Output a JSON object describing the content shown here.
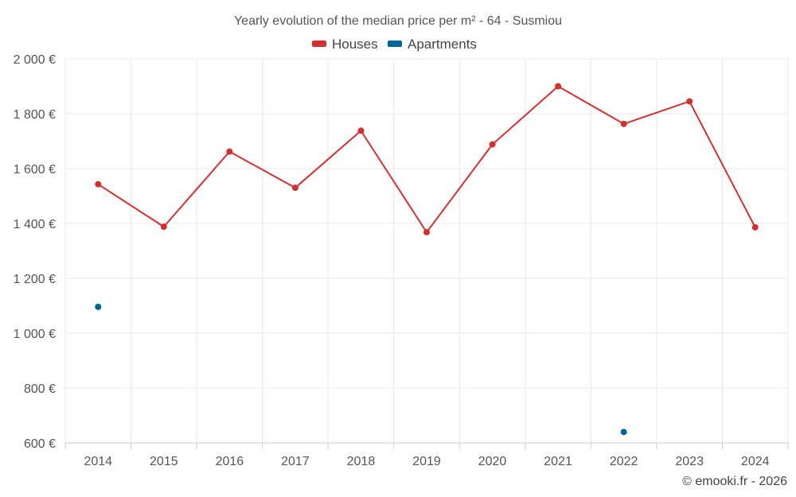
{
  "chart_data": {
    "type": "line",
    "title": "Yearly evolution of the median price per m² - 64 - Susmiou",
    "categories": [
      "2014",
      "2015",
      "2016",
      "2017",
      "2018",
      "2019",
      "2020",
      "2021",
      "2022",
      "2023",
      "2024"
    ],
    "y_tick_labels": [
      "600 €",
      "800 €",
      "1 000 €",
      "1 200 €",
      "1 400 €",
      "1 600 €",
      "1 800 €",
      "2 000 €"
    ],
    "y_ticks": [
      600,
      800,
      1000,
      1200,
      1400,
      1600,
      1800,
      2000
    ],
    "ylim": [
      600,
      2000
    ],
    "xlabel": "",
    "ylabel": "",
    "grid": true,
    "legend_position": "top",
    "series": [
      {
        "name": "Houses",
        "color": "#d32f2f",
        "values": [
          1543,
          1388,
          1662,
          1530,
          1738,
          1368,
          1688,
          1900,
          1763,
          1845,
          1386
        ],
        "draw_line": true
      },
      {
        "name": "Apartments",
        "color": "#006699",
        "values": [
          1096,
          null,
          null,
          null,
          null,
          null,
          null,
          null,
          640,
          null,
          null
        ],
        "draw_line": false
      }
    ]
  },
  "credit": "© emooki.fr - 2026"
}
